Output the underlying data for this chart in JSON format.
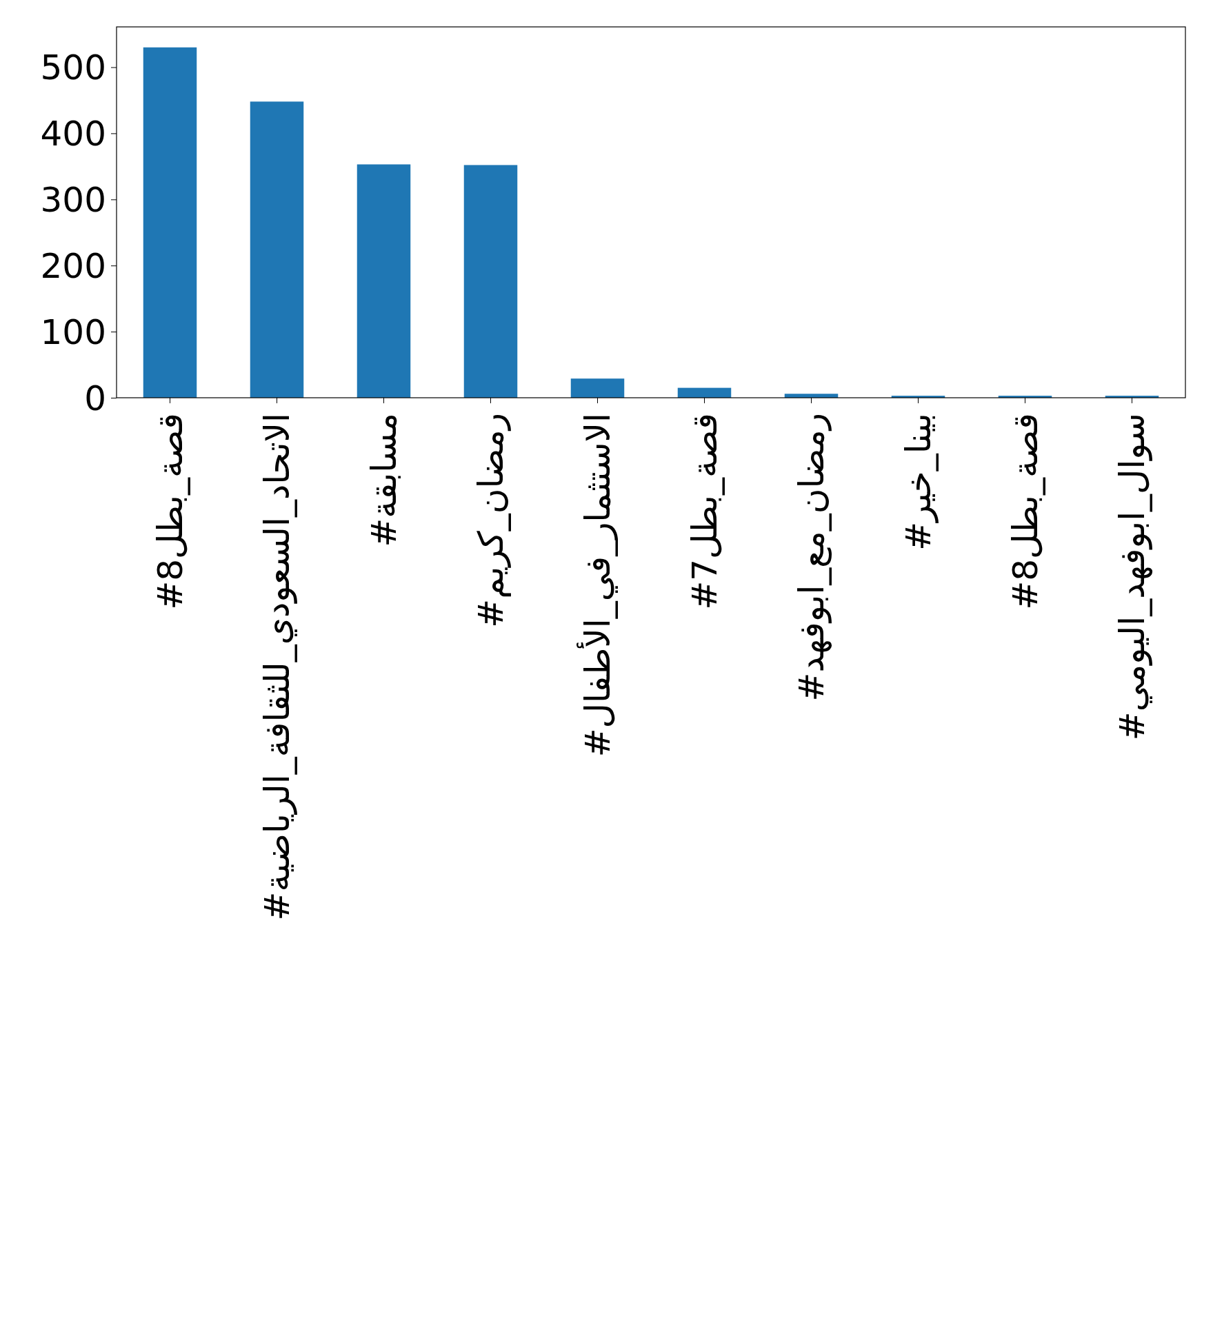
{
  "chart_data": {
    "type": "bar",
    "categories": [
      "#قصة_بطل8",
      "#الاتحاد_السعودي_للثقافة_الرياضية",
      "#مسابقة",
      "#رمضان_كريم",
      "#الاستثمار_في_الأطفال",
      "#قصة_بطل7",
      "#رمضان_مع_ابوفهد",
      "#بينا_خير",
      "#8قصة_بطل",
      "#سوال_ابوفهد_اليومي"
    ],
    "values": [
      530,
      448,
      353,
      352,
      29,
      15,
      6,
      3,
      3,
      3
    ],
    "color": "#1f77b4",
    "ylim": [
      0,
      561
    ],
    "yticks": [
      0,
      100,
      200,
      300,
      400,
      500
    ],
    "grid": false
  }
}
